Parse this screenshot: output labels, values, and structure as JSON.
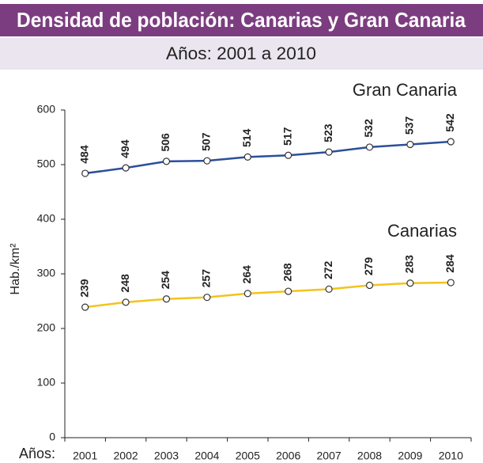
{
  "chart_data": {
    "type": "line",
    "title": "Densidad de población: Canarias y Gran Canaria",
    "subtitle": "Años: 2001 a 2010",
    "xlabel": "Años:",
    "ylabel": "Hab./km²",
    "categories": [
      "2001",
      "2002",
      "2003",
      "2004",
      "2005",
      "2006",
      "2007",
      "2008",
      "2009",
      "2010"
    ],
    "series": [
      {
        "name": "Gran Canaria",
        "color": "#2b4f9b",
        "values": [
          484,
          494,
          506,
          507,
          514,
          517,
          523,
          532,
          537,
          542
        ]
      },
      {
        "name": "Canarias",
        "color": "#f3c31c",
        "values": [
          239,
          248,
          254,
          257,
          264,
          268,
          272,
          279,
          283,
          284
        ]
      }
    ],
    "ylim": [
      0,
      600
    ],
    "yticks": [
      0,
      100,
      200,
      300,
      400,
      500,
      600
    ],
    "grid": false
  }
}
